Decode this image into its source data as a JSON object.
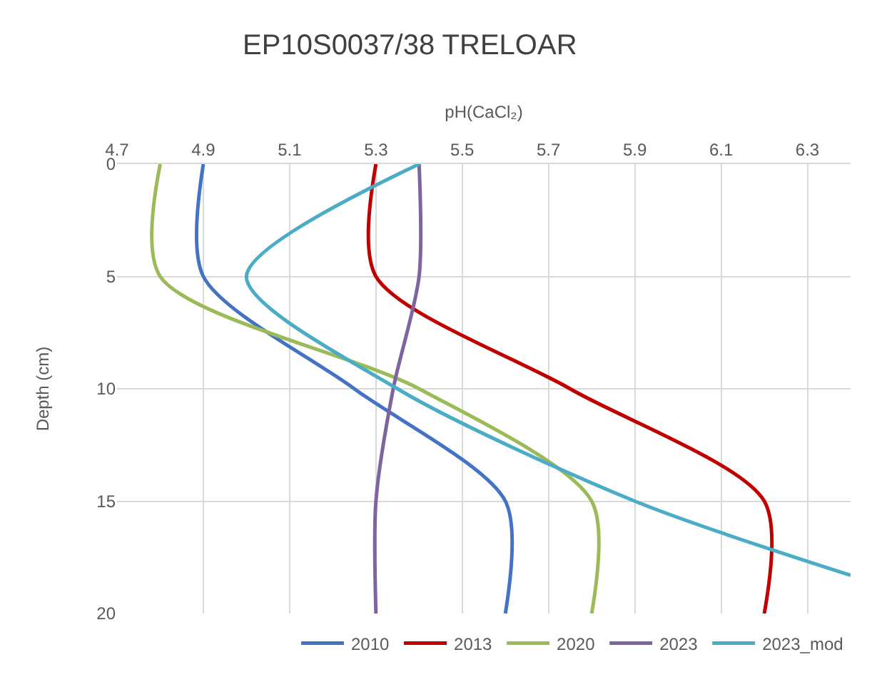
{
  "chart_data": {
    "type": "line",
    "title": "EP10S0037/38 TRELOAR",
    "xlabel": "pH(CaCl₂)",
    "ylabel": "Depth (cm)",
    "xlim": [
      4.7,
      6.4
    ],
    "xticks": [
      4.7,
      4.9,
      5.1,
      5.3,
      5.5,
      5.7,
      5.9,
      6.1,
      6.3
    ],
    "ylim": [
      20,
      0
    ],
    "yticks": [
      0,
      5,
      10,
      15,
      20
    ],
    "series": [
      {
        "name": "2010",
        "color": "#4472c4",
        "x": [
          4.9,
          4.9,
          5.25,
          5.6,
          5.6
        ],
        "values": [
          0,
          5,
          10,
          15,
          20
        ]
      },
      {
        "name": "2013",
        "color": "#c00000",
        "x": [
          5.3,
          5.3,
          5.75,
          6.2,
          6.2
        ],
        "values": [
          0,
          5,
          10,
          15,
          20
        ]
      },
      {
        "name": "2020",
        "color": "#9bbb59",
        "x": [
          4.8,
          4.8,
          5.4,
          5.8,
          5.8
        ],
        "values": [
          0,
          5,
          10,
          15,
          20
        ]
      },
      {
        "name": "2023",
        "color": "#8064a2",
        "x": [
          5.4,
          5.4,
          5.34,
          5.3,
          5.3
        ],
        "values": [
          0,
          5,
          10,
          15,
          20
        ]
      },
      {
        "name": "2023_mod",
        "color": "#4bacc6",
        "x": [
          5.4,
          5.0,
          5.35,
          5.9,
          6.4
        ],
        "values": [
          0,
          5,
          10,
          15,
          18.3
        ]
      }
    ],
    "grid": true,
    "legend": "bottom right",
    "marker": "none",
    "line_style": "solid"
  }
}
